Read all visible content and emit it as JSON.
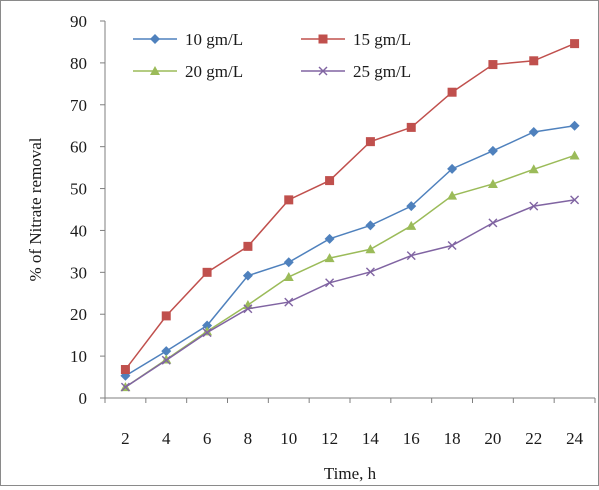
{
  "chart_data": {
    "type": "line",
    "xlabel": "Time, h",
    "ylabel": "% of Nitrate removal",
    "x": [
      2,
      4,
      6,
      8,
      10,
      12,
      14,
      16,
      18,
      20,
      22,
      24
    ],
    "xticks": [
      "2",
      "4",
      "6",
      "8",
      "10",
      "12",
      "14",
      "16",
      "18",
      "20",
      "22",
      "24"
    ],
    "ylim": [
      0,
      90
    ],
    "yticks": [
      "0",
      "10",
      "20",
      "30",
      "40",
      "50",
      "60",
      "70",
      "80",
      "90"
    ],
    "grid": false,
    "legend_position": "top-left",
    "series": [
      {
        "name": "10 gm/L",
        "color": "#4f81bd",
        "marker": "diamond",
        "values": [
          5.3,
          11.2,
          17.3,
          29.2,
          32.4,
          38.0,
          41.2,
          45.8,
          54.7,
          59.0,
          63.5,
          65.0
        ]
      },
      {
        "name": "15 gm/L",
        "color": "#c0504d",
        "marker": "square",
        "values": [
          6.8,
          19.6,
          30.0,
          36.2,
          47.3,
          51.9,
          61.2,
          64.6,
          73.0,
          79.6,
          80.5,
          84.6
        ]
      },
      {
        "name": "20 gm/L",
        "color": "#9bbb59",
        "marker": "triangle",
        "values": [
          2.6,
          9.2,
          15.9,
          22.2,
          28.9,
          33.4,
          35.5,
          41.1,
          48.3,
          51.1,
          54.6,
          57.9
        ]
      },
      {
        "name": "25 gm/L",
        "color": "#8064a2",
        "marker": "x",
        "values": [
          2.6,
          9.0,
          15.6,
          21.3,
          22.9,
          27.5,
          30.1,
          34.0,
          36.4,
          41.8,
          45.8,
          47.3
        ]
      }
    ]
  }
}
